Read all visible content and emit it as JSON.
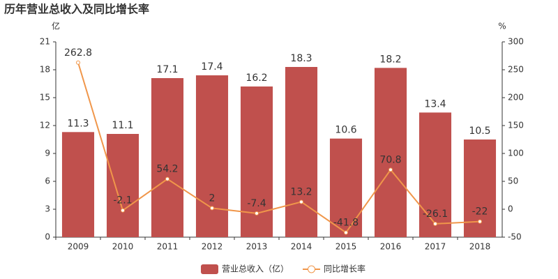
{
  "chart_data": {
    "type": "bar",
    "title": "历年营业总收入及同比增长率",
    "y_label": "亿",
    "y2_label": "%",
    "categories": [
      "2009",
      "2010",
      "2011",
      "2012",
      "2013",
      "2014",
      "2015",
      "2016",
      "2017",
      "2018"
    ],
    "series": [
      {
        "name": "营业总收入（亿）",
        "type": "bar",
        "color": "#c0504d",
        "values": [
          11.3,
          11.1,
          17.1,
          17.4,
          16.2,
          18.3,
          10.6,
          18.2,
          13.4,
          10.5
        ]
      },
      {
        "name": "同比增长率",
        "type": "line",
        "axis": "y2",
        "color": "#f0964a",
        "values": [
          262.8,
          -2.1,
          54.2,
          2,
          -7.4,
          13.2,
          -41.8,
          70.8,
          -26.1,
          -22
        ]
      }
    ],
    "ylim": [
      0,
      21
    ],
    "yticks": [
      0,
      3,
      6,
      9,
      12,
      15,
      18,
      21
    ],
    "y2lim": [
      -50,
      300
    ],
    "y2ticks": [
      -50,
      0,
      50,
      100,
      150,
      200,
      250,
      300
    ],
    "legend": "bottom"
  }
}
